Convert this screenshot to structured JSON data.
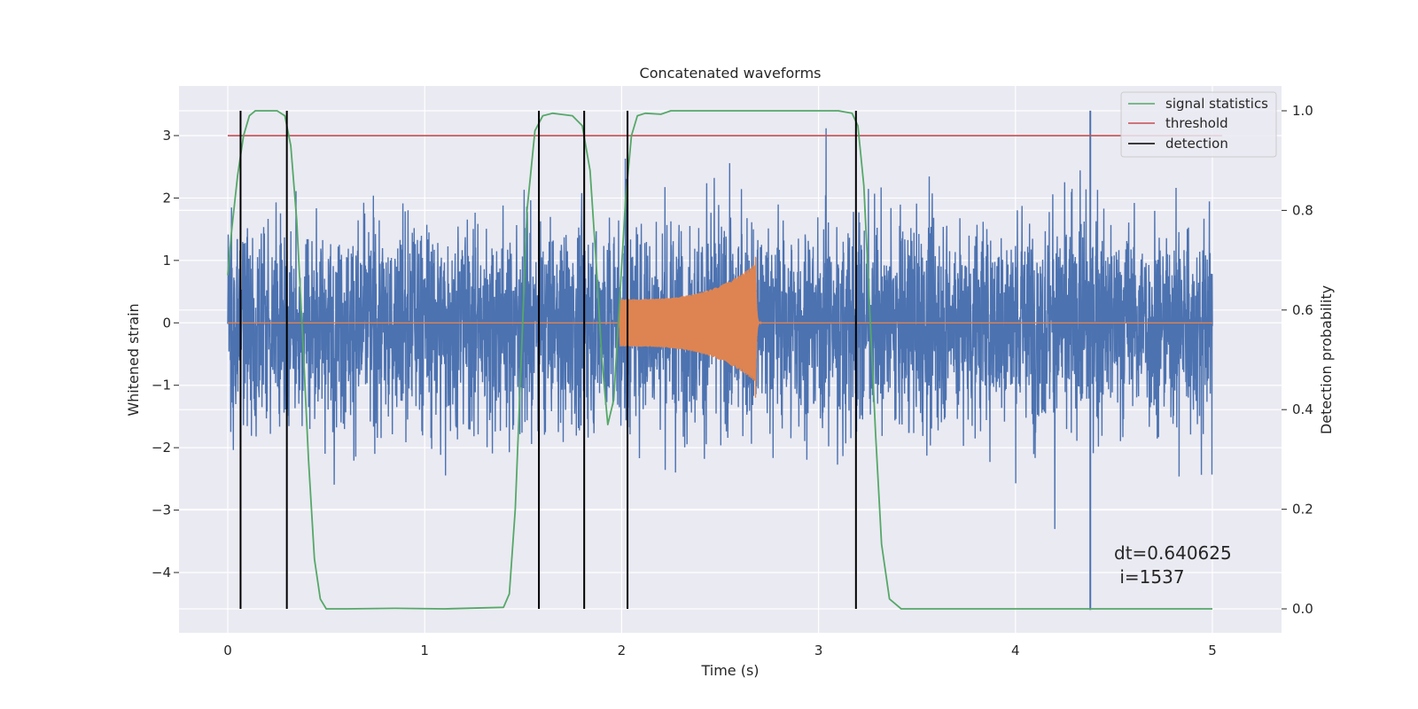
{
  "chart_data": {
    "type": "line",
    "title": "Concatenated waveforms",
    "xlabel": "Time (s)",
    "ylabel_left": "Whitened strain",
    "ylabel_right": "Detection probability",
    "xlim": [
      -0.25,
      5.35
    ],
    "ylim_left": [
      -4.75,
      3.75
    ],
    "ylim_right": [
      -0.05,
      1.05
    ],
    "x_ticks": [
      0,
      1,
      2,
      3,
      4,
      5
    ],
    "x_tick_labels": [
      "0",
      "1",
      "2",
      "3",
      "4",
      "5"
    ],
    "y_left_ticks": [
      3,
      2,
      1,
      0,
      -1,
      -2,
      -3,
      -4
    ],
    "y_left_tick_labels": [
      "3",
      "2",
      "1",
      "0",
      "−1",
      "−2",
      "−3",
      "−4"
    ],
    "y_right_ticks": [
      1.0,
      0.8,
      0.6,
      0.4,
      0.2,
      0.0
    ],
    "y_right_tick_labels": [
      "1.0",
      "0.8",
      "0.6",
      "0.4",
      "0.2",
      "0.0"
    ],
    "grid": true,
    "legend_position": "top-right",
    "legend": [
      {
        "label": "signal statistics",
        "color": "#55a868"
      },
      {
        "label": "threshold",
        "color": "#c44e52"
      },
      {
        "label": "detection",
        "color": "#000000"
      }
    ],
    "series": [
      {
        "kind": "strain_noise",
        "axis": "left",
        "color": "#4c72b0",
        "x_range": [
          0,
          5
        ],
        "approx_amplitude": 2.0,
        "note_spike": {
          "x": 4.38,
          "y": -4.6
        }
      },
      {
        "kind": "waveform",
        "axis": "left",
        "color": "#dd8452",
        "x_range": [
          0,
          5
        ],
        "active_range": [
          1.99,
          2.68
        ],
        "peak_amplitude": 0.95
      },
      {
        "name": "signal statistics",
        "axis": "right",
        "color": "#55a868",
        "x": [
          0,
          0.02,
          0.05,
          0.08,
          0.11,
          0.14,
          0.18,
          0.25,
          0.29,
          0.32,
          0.35,
          0.38,
          0.41,
          0.44,
          0.47,
          0.5,
          0.6,
          0.85,
          1.1,
          1.4,
          1.43,
          1.46,
          1.49,
          1.52,
          1.56,
          1.6,
          1.65,
          1.75,
          1.8,
          1.84,
          1.87,
          1.9,
          1.93,
          1.96,
          1.99,
          2.02,
          2.05,
          2.08,
          2.12,
          2.2,
          2.25,
          3.1,
          3.17,
          3.2,
          3.23,
          3.26,
          3.29,
          3.32,
          3.36,
          3.42,
          5.0
        ],
        "y": [
          0.67,
          0.76,
          0.87,
          0.95,
          0.99,
          1.0,
          1.0,
          1.0,
          0.99,
          0.93,
          0.78,
          0.55,
          0.3,
          0.1,
          0.02,
          0.0,
          0.0,
          0.001,
          0.0,
          0.003,
          0.03,
          0.2,
          0.5,
          0.8,
          0.96,
          0.99,
          0.995,
          0.99,
          0.97,
          0.88,
          0.7,
          0.5,
          0.37,
          0.42,
          0.62,
          0.82,
          0.95,
          0.99,
          0.995,
          0.993,
          1.0,
          1.0,
          0.995,
          0.97,
          0.85,
          0.6,
          0.35,
          0.13,
          0.02,
          0.0,
          0.0
        ]
      },
      {
        "name": "threshold",
        "axis": "right",
        "color": "#c44e52",
        "x": [
          0,
          5.05
        ],
        "y": [
          0.95,
          0.95
        ]
      }
    ],
    "detections": [
      0.065,
      0.3,
      1.58,
      1.81,
      2.03,
      3.19
    ],
    "detection_y_range": [
      0.0,
      1.0
    ]
  },
  "annotation": {
    "line1": "dt=0.640625",
    "line2": " i=1537"
  }
}
